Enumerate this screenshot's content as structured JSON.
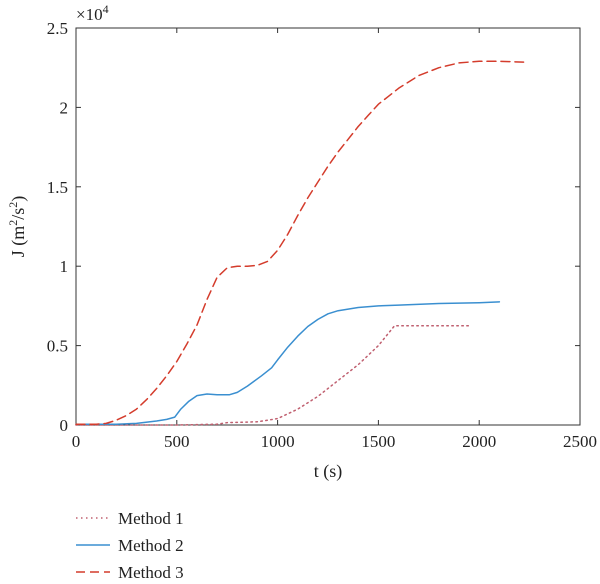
{
  "chart_data": {
    "type": "line",
    "xlabel": "t (s)",
    "ylabel_main": "J (m",
    "ylabel_sup1": "2",
    "ylabel_mid": "/s",
    "ylabel_sup2": "2",
    "ylabel_end": ")",
    "y_multiplier_base": "×10",
    "y_multiplier_exp": "4",
    "xlim": [
      0,
      2500
    ],
    "ylim": [
      0,
      2.5
    ],
    "xticks": [
      "0",
      "500",
      "1000",
      "1500",
      "2000",
      "2500"
    ],
    "yticks": [
      "0",
      "0.5",
      "1",
      "1.5",
      "2",
      "2.5"
    ],
    "legend_placement": "below",
    "series": [
      {
        "name": "Method 1",
        "color": "#c06070",
        "dash": "dotted",
        "points": [
          [
            0,
            0
          ],
          [
            300,
            0
          ],
          [
            500,
            0
          ],
          [
            700,
            0.005
          ],
          [
            750,
            0.015
          ],
          [
            900,
            0.02
          ],
          [
            1000,
            0.04
          ],
          [
            1100,
            0.1
          ],
          [
            1200,
            0.18
          ],
          [
            1300,
            0.28
          ],
          [
            1400,
            0.38
          ],
          [
            1500,
            0.5
          ],
          [
            1580,
            0.625
          ],
          [
            1700,
            0.625
          ],
          [
            1800,
            0.625
          ],
          [
            1960,
            0.625
          ]
        ]
      },
      {
        "name": "Method 2",
        "color": "#3a8fd0",
        "dash": "solid",
        "points": [
          [
            0,
            0.005
          ],
          [
            200,
            0.005
          ],
          [
            300,
            0.01
          ],
          [
            400,
            0.025
          ],
          [
            450,
            0.035
          ],
          [
            490,
            0.05
          ],
          [
            520,
            0.1
          ],
          [
            560,
            0.15
          ],
          [
            600,
            0.185
          ],
          [
            650,
            0.195
          ],
          [
            700,
            0.19
          ],
          [
            760,
            0.19
          ],
          [
            800,
            0.205
          ],
          [
            850,
            0.245
          ],
          [
            920,
            0.31
          ],
          [
            970,
            0.36
          ],
          [
            1000,
            0.41
          ],
          [
            1050,
            0.49
          ],
          [
            1100,
            0.56
          ],
          [
            1150,
            0.62
          ],
          [
            1200,
            0.665
          ],
          [
            1250,
            0.7
          ],
          [
            1300,
            0.72
          ],
          [
            1400,
            0.74
          ],
          [
            1500,
            0.75
          ],
          [
            1600,
            0.755
          ],
          [
            1800,
            0.765
          ],
          [
            2000,
            0.77
          ],
          [
            2100,
            0.775
          ]
        ]
      },
      {
        "name": "Method 3",
        "color": "#d43c2c",
        "dash": "dashed",
        "points": [
          [
            0,
            0.005
          ],
          [
            100,
            0.005
          ],
          [
            150,
            0.01
          ],
          [
            200,
            0.03
          ],
          [
            250,
            0.06
          ],
          [
            300,
            0.1
          ],
          [
            350,
            0.16
          ],
          [
            400,
            0.23
          ],
          [
            450,
            0.31
          ],
          [
            500,
            0.4
          ],
          [
            550,
            0.51
          ],
          [
            600,
            0.63
          ],
          [
            650,
            0.79
          ],
          [
            700,
            0.93
          ],
          [
            750,
            0.99
          ],
          [
            800,
            1.0
          ],
          [
            850,
            1.0
          ],
          [
            900,
            1.005
          ],
          [
            950,
            1.03
          ],
          [
            1000,
            1.1
          ],
          [
            1050,
            1.2
          ],
          [
            1100,
            1.32
          ],
          [
            1150,
            1.43
          ],
          [
            1200,
            1.53
          ],
          [
            1250,
            1.63
          ],
          [
            1300,
            1.72
          ],
          [
            1350,
            1.8
          ],
          [
            1400,
            1.88
          ],
          [
            1450,
            1.95
          ],
          [
            1500,
            2.02
          ],
          [
            1550,
            2.07
          ],
          [
            1600,
            2.12
          ],
          [
            1700,
            2.2
          ],
          [
            1800,
            2.25
          ],
          [
            1900,
            2.28
          ],
          [
            2000,
            2.29
          ],
          [
            2100,
            2.29
          ],
          [
            2220,
            2.285
          ]
        ]
      }
    ]
  }
}
